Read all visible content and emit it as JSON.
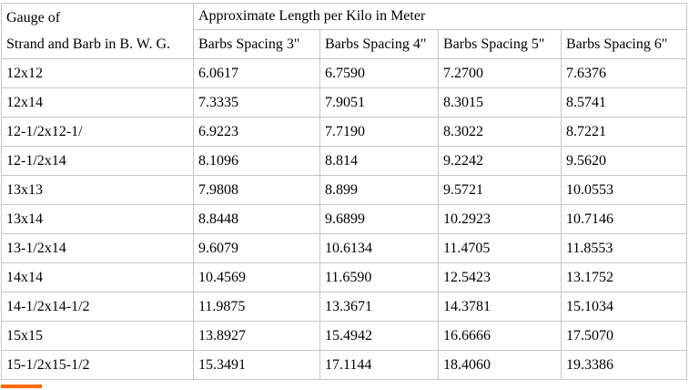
{
  "colors": {
    "border_gray": "#c6c6c6",
    "accent_orange": "#ff6a00"
  },
  "table": {
    "header": {
      "gauge_label_line1": "Gauge of",
      "gauge_label_line2": "Strand and Barb in B. W. G.",
      "group_label": "Approximate Length per Kilo in Meter",
      "spacing_columns": [
        "Barbs Spacing 3\"",
        "Barbs Spacing 4\"",
        "Barbs Spacing 5\"",
        "Barbs Spacing 6\""
      ]
    },
    "rows": [
      {
        "gauge": "12x12",
        "values": [
          "6.0617",
          "6.7590",
          "7.2700",
          "7.6376"
        ]
      },
      {
        "gauge": "12x14",
        "values": [
          "7.3335",
          "7.9051",
          "8.3015",
          "8.5741"
        ]
      },
      {
        "gauge": "12-1/2x12-1/",
        "values": [
          "6.9223",
          "7.7190",
          "8.3022",
          "8.7221"
        ]
      },
      {
        "gauge": "12-1/2x14",
        "values": [
          "8.1096",
          "8.814",
          "9.2242",
          "9.5620"
        ]
      },
      {
        "gauge": "13x13",
        "values": [
          "7.9808",
          "8.899",
          "9.5721",
          "10.0553"
        ]
      },
      {
        "gauge": "13x14",
        "values": [
          "8.8448",
          "9.6899",
          "10.2923",
          "10.7146"
        ]
      },
      {
        "gauge": "13-1/2x14",
        "values": [
          "9.6079",
          "10.6134",
          "11.4705",
          "11.8553"
        ]
      },
      {
        "gauge": "14x14",
        "values": [
          "10.4569",
          "11.6590",
          "12.5423",
          "13.1752"
        ]
      },
      {
        "gauge": "14-1/2x14-1/2",
        "values": [
          "11.9875",
          "13.3671",
          "14.3781",
          "15.1034"
        ]
      },
      {
        "gauge": "15x15",
        "values": [
          "13.8927",
          "15.4942",
          "16.6666",
          "17.5070"
        ]
      },
      {
        "gauge": "15-1/2x15-1/2",
        "values": [
          "15.3491",
          "17.1144",
          "18.4060",
          "19.3386"
        ]
      }
    ]
  }
}
